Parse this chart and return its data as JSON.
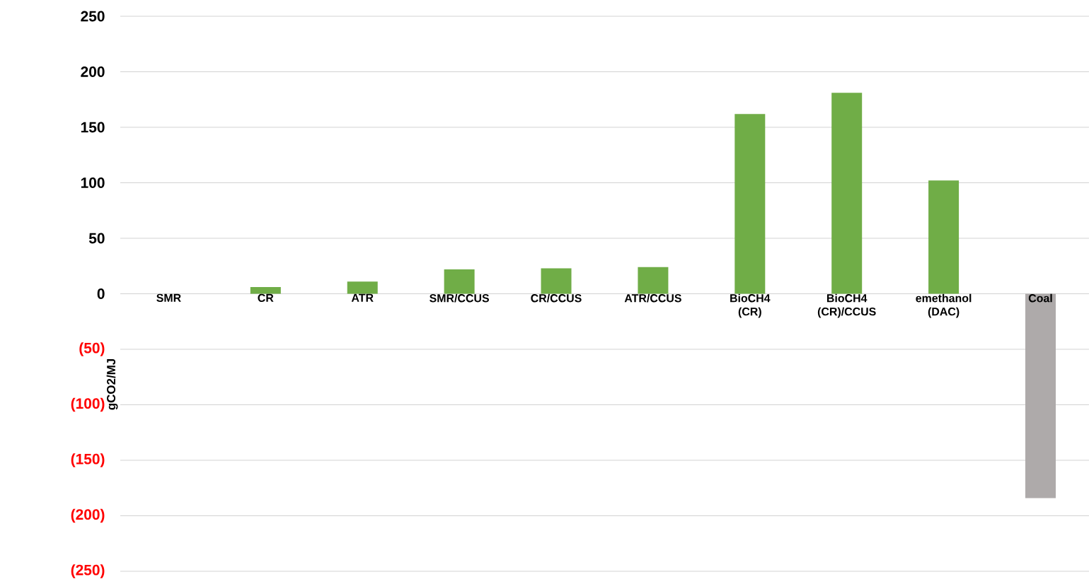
{
  "chart_data": {
    "type": "bar",
    "ylabel": "gCO2/MJ",
    "categories": [
      "SMR",
      "CR",
      "ATR",
      "SMR/CCUS",
      "CR/CCUS",
      "ATR/CCUS",
      "BioCH4 (CR)",
      "BioCH4 (CR)/CCUS",
      "emethanol (DAC)",
      "Coal"
    ],
    "values": [
      0,
      6,
      11,
      22,
      23,
      24,
      162,
      181,
      102,
      -184
    ],
    "colors": [
      "#70ad47",
      "#70ad47",
      "#70ad47",
      "#70ad47",
      "#70ad47",
      "#70ad47",
      "#70ad47",
      "#70ad47",
      "#70ad47",
      "#aeaaaa"
    ],
    "ylim": [
      -250,
      250
    ],
    "yticks": [
      {
        "value": -250,
        "label": "(250)"
      },
      {
        "value": -200,
        "label": "(200)"
      },
      {
        "value": -150,
        "label": "(150)"
      },
      {
        "value": -100,
        "label": "(100)"
      },
      {
        "value": -50,
        "label": "(50)"
      },
      0,
      50,
      100,
      150,
      200,
      250
    ],
    "grid": "y"
  }
}
